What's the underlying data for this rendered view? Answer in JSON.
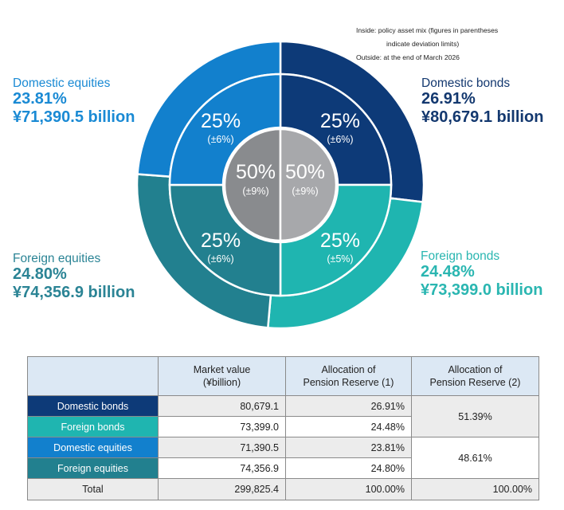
{
  "note": {
    "line1": "Inside: policy asset mix (figures in parentheses",
    "line2": "indicate deviation limits)",
    "line3": "Outside: at the end of March 2026"
  },
  "colors": {
    "domestic_bonds": "#0d3a78",
    "foreign_bonds": "#1fb5b0",
    "domestic_equities": "#1280cd",
    "foreign_equities": "#22808f",
    "center_left": "#898b8e",
    "center_right": "#a7a8ab"
  },
  "labels": {
    "domestic_equities": {
      "name": "Domestic equities",
      "pct": "23.81%",
      "amount": "¥71,390.5 billion"
    },
    "domestic_bonds": {
      "name": "Domestic bonds",
      "pct": "26.91%",
      "amount": "¥80,679.1 billion"
    },
    "foreign_equities": {
      "name": "Foreign equities",
      "pct": "24.80%",
      "amount": "¥74,356.9 billion"
    },
    "foreign_bonds": {
      "name": "Foreign bonds",
      "pct": "24.48%",
      "amount": "¥73,399.0 billion"
    }
  },
  "chart_data": {
    "type": "pie",
    "outer_ring": [
      {
        "name": "Domestic bonds",
        "value": 26.91
      },
      {
        "name": "Foreign bonds",
        "value": 24.48
      },
      {
        "name": "Foreign equities",
        "value": 24.8
      },
      {
        "name": "Domestic equities",
        "value": 23.81
      }
    ],
    "middle_ring": [
      {
        "quadrant": "Domestic bonds",
        "value": "25%",
        "limit": "(±6%)"
      },
      {
        "quadrant": "Foreign bonds",
        "value": "25%",
        "limit": "(±5%)"
      },
      {
        "quadrant": "Foreign equities",
        "value": "25%",
        "limit": "(±6%)"
      },
      {
        "quadrant": "Domestic equities",
        "value": "25%",
        "limit": "(±6%)"
      }
    ],
    "center": [
      {
        "side": "left",
        "value": "50%",
        "limit": "(±9%)"
      },
      {
        "side": "right",
        "value": "50%",
        "limit": "(±9%)"
      }
    ]
  },
  "table": {
    "headers": [
      "",
      "Market value\n(¥billion)",
      "Allocation of\nPension Reserve (1)",
      "Allocation of\nPension Reserve (2)"
    ],
    "rows": [
      {
        "name": "Domestic bonds",
        "market_value": "80,679.1",
        "alloc1": "26.91%"
      },
      {
        "name": "Foreign bonds",
        "market_value": "73,399.0",
        "alloc1": "24.48%"
      },
      {
        "name": "Domestic equities",
        "market_value": "71,390.5",
        "alloc1": "23.81%"
      },
      {
        "name": "Foreign equities",
        "market_value": "74,356.9",
        "alloc1": "24.80%"
      }
    ],
    "bonds_alloc2": "51.39%",
    "equities_alloc2": "48.61%",
    "total": {
      "name": "Total",
      "market_value": "299,825.4",
      "alloc1": "100.00%",
      "alloc2": "100.00%"
    }
  }
}
